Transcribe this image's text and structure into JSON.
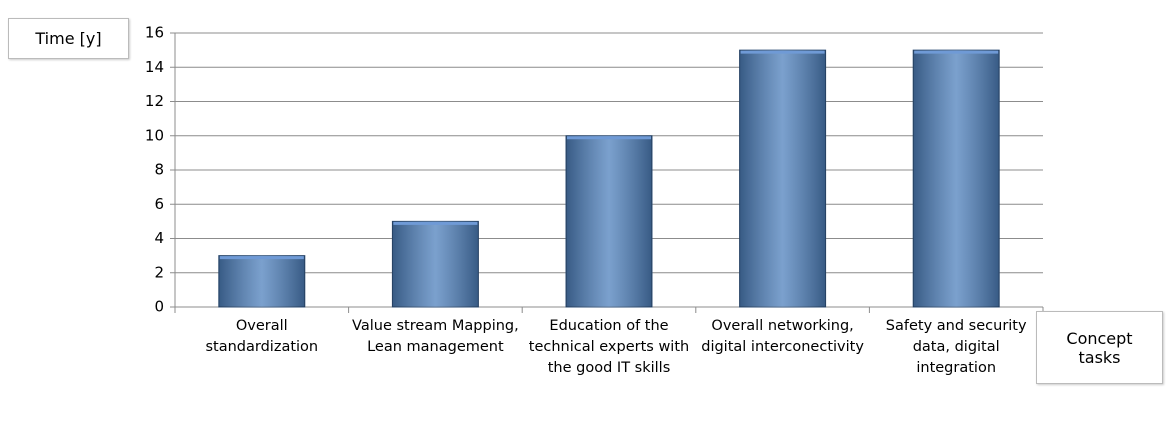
{
  "chart_data": {
    "type": "bar",
    "y_label": "Time [y]",
    "x_label": "Concept tasks",
    "categories": [
      "Overall standardization",
      "Value stream Mapping, Lean management",
      "Education of the technical experts with the good IT skills",
      "Overall networking, digital interconectivity",
      "Safety and security data, digital integration"
    ],
    "values": [
      3,
      5,
      10,
      15,
      15
    ],
    "color": "#4f81bd",
    "ylim": [
      0,
      16
    ],
    "yticks": [
      0,
      2,
      4,
      6,
      8,
      10,
      12,
      14,
      16
    ],
    "grid": true
  }
}
